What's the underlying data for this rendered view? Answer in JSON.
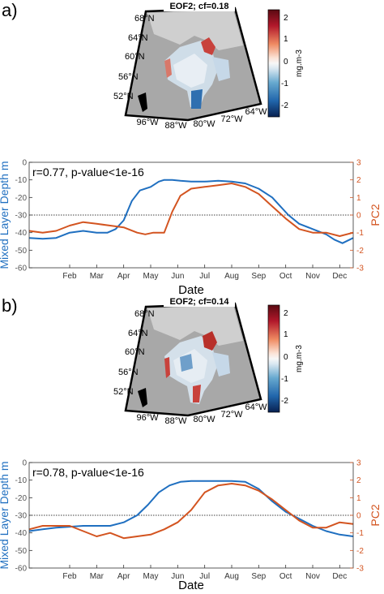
{
  "figure": {
    "panels": [
      {
        "panel_label": "a)",
        "map": {
          "title": "EOF2; cf=0.18",
          "lat_labels": [
            "68°N",
            "64°N",
            "60°N",
            "56°N",
            "52°N"
          ],
          "lon_labels": [
            "96°W",
            "88°W",
            "80°W",
            "72°W",
            "64°W"
          ],
          "colorbar_ticks": [
            "2",
            "1",
            "0",
            "-1",
            "-2"
          ],
          "colorbar_unit": "mg.m-3"
        },
        "annotation": "r=0.77, p-value<1e-16"
      },
      {
        "panel_label": "b)",
        "map": {
          "title": "EOF2; cf=0.14",
          "lat_labels": [
            "68°N",
            "64°N",
            "60°N",
            "56°N",
            "52°N"
          ],
          "lon_labels": [
            "96°W",
            "88°W",
            "80°W",
            "72°W",
            "64°W"
          ],
          "colorbar_ticks": [
            "2",
            "1",
            "0",
            "-1",
            "-2"
          ],
          "colorbar_unit": "mg.m-3"
        },
        "annotation": "r=0.78, p-value<1e-16"
      }
    ]
  },
  "colors": {
    "mld_blue": "#1f6fc0",
    "pc_orange": "#d35420",
    "land_gray": "#c8c8c8",
    "water_gray": "#a8a8a8"
  },
  "chart_data": [
    {
      "type": "line",
      "xlabel": "Date",
      "ylabel_left": "Mixed Layer Depth m",
      "ylabel_right": "PC2",
      "x_tick_labels": [
        "Feb",
        "Mar",
        "Apr",
        "May",
        "Jun",
        "Jul",
        "Aug",
        "Sep",
        "Oct",
        "Nov",
        "Dec"
      ],
      "xlim": [
        0,
        12
      ],
      "ylim_left": [
        -60,
        0
      ],
      "yticks_left": [
        "0",
        "-10",
        "-20",
        "-30",
        "-40",
        "-50",
        "-60"
      ],
      "ylim_right": [
        -3,
        3
      ],
      "yticks_right": [
        "3",
        "2",
        "1",
        "0",
        "-1",
        "-2",
        "-3"
      ],
      "reference_line_right": 0,
      "series": [
        {
          "axis": "left",
          "x": [
            0,
            0.5,
            1,
            1.5,
            2,
            2.5,
            2.9,
            3.2,
            3.5,
            3.8,
            4.1,
            4.5,
            4.8,
            5,
            5.3,
            5.6,
            6,
            6.5,
            7,
            7.5,
            8,
            8.5,
            9,
            9.3,
            9.6,
            10,
            10.5,
            11,
            11.3,
            11.6,
            12
          ],
          "values": [
            -43,
            -43.5,
            -43,
            -40,
            -39,
            -40,
            -40,
            -38,
            -33,
            -22,
            -16,
            -14,
            -11,
            -10,
            -10,
            -10.5,
            -11,
            -11,
            -10.5,
            -11,
            -12,
            -15,
            -20,
            -25,
            -30,
            -35,
            -38,
            -41,
            -44,
            -46,
            -43
          ]
        },
        {
          "axis": "right",
          "x": [
            0,
            0.5,
            1,
            1.5,
            2,
            2.5,
            3,
            3.5,
            4,
            4.3,
            4.6,
            5,
            5.3,
            5.6,
            6,
            6.5,
            7,
            7.5,
            8,
            8.5,
            9,
            9.5,
            10,
            10.5,
            11,
            11.5,
            12
          ],
          "values": [
            -0.9,
            -1.0,
            -0.9,
            -0.6,
            -0.4,
            -0.5,
            -0.6,
            -0.7,
            -1.0,
            -1.1,
            -1.0,
            -1.0,
            0.2,
            1.1,
            1.5,
            1.6,
            1.7,
            1.8,
            1.6,
            1.2,
            0.5,
            -0.2,
            -0.8,
            -1.0,
            -1.0,
            -1.2,
            -1.0
          ]
        }
      ]
    },
    {
      "type": "line",
      "xlabel": "Date",
      "ylabel_left": "Mixed Layer Depth m",
      "ylabel_right": "PC2",
      "x_tick_labels": [
        "Feb",
        "Mar",
        "Apr",
        "May",
        "Jun",
        "Jul",
        "Aug",
        "Sep",
        "Oct",
        "Nov",
        "Dec"
      ],
      "xlim": [
        0,
        12
      ],
      "ylim_left": [
        -60,
        0
      ],
      "yticks_left": [
        "0",
        "-10",
        "-20",
        "-30",
        "-40",
        "-50",
        "-60"
      ],
      "ylim_right": [
        -3,
        3
      ],
      "yticks_right": [
        "3",
        "2",
        "1",
        "0",
        "-1",
        "-2",
        "-3"
      ],
      "reference_line_right": 0,
      "series": [
        {
          "axis": "left",
          "x": [
            0,
            0.5,
            1,
            1.5,
            2,
            2.5,
            3,
            3.5,
            4,
            4.4,
            4.8,
            5.2,
            5.6,
            6,
            6.5,
            7,
            7.5,
            8,
            8.5,
            9,
            9.5,
            10,
            10.5,
            11,
            11.5,
            12
          ],
          "values": [
            -39,
            -38,
            -37,
            -36.5,
            -36,
            -36,
            -36,
            -34,
            -30,
            -24,
            -17,
            -13,
            -11,
            -10.5,
            -10.5,
            -10.5,
            -10.5,
            -11,
            -15,
            -22,
            -28,
            -32,
            -36,
            -39,
            -41,
            -42
          ]
        },
        {
          "axis": "right",
          "x": [
            0,
            0.5,
            1,
            1.5,
            2,
            2.5,
            3,
            3.5,
            4,
            4.5,
            5,
            5.5,
            6,
            6.5,
            7,
            7.5,
            8,
            8.5,
            9,
            9.5,
            10,
            10.5,
            11,
            11.5,
            12
          ],
          "values": [
            -0.8,
            -0.6,
            -0.6,
            -0.6,
            -0.9,
            -1.2,
            -1.0,
            -1.3,
            -1.2,
            -1.1,
            -0.8,
            -0.4,
            0.3,
            1.3,
            1.7,
            1.8,
            1.7,
            1.4,
            0.9,
            0.3,
            -0.3,
            -0.7,
            -0.7,
            -0.4,
            -0.5
          ]
        }
      ]
    }
  ]
}
